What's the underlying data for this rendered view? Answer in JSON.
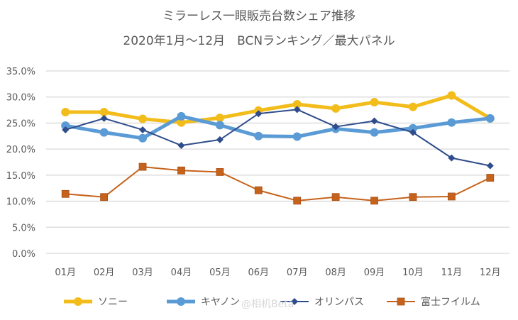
{
  "chart_data": {
    "type": "line",
    "title": "ミラーレス一眼販売台数シェア推移",
    "subtitle": "2020年1月～12月　BCNランキング／最大パネル",
    "xlabel": "",
    "ylabel": "",
    "categories": [
      "01月",
      "02月",
      "03月",
      "04月",
      "05月",
      "06月",
      "07月",
      "08月",
      "09月",
      "10月",
      "11月",
      "12月"
    ],
    "ylim": [
      0,
      35
    ],
    "yticks": [
      0,
      5,
      10,
      15,
      20,
      25,
      30,
      35
    ],
    "ytick_labels": [
      "0.0%",
      "5.0%",
      "10.0%",
      "15.0%",
      "20.0%",
      "25.0%",
      "30.0%",
      "35.0%"
    ],
    "grid": true,
    "legend_position": "bottom",
    "series": [
      {
        "name": "ソニー",
        "color": "#F2BC1B",
        "marker": "circle",
        "values": [
          27.1,
          27.1,
          25.8,
          25.1,
          26.0,
          27.4,
          28.6,
          27.8,
          29.0,
          28.1,
          30.3,
          25.9
        ]
      },
      {
        "name": "キヤノン",
        "color": "#5B9BD5",
        "marker": "circle",
        "values": [
          24.5,
          23.2,
          22.1,
          26.3,
          24.6,
          22.5,
          22.4,
          23.9,
          23.2,
          24.0,
          25.1,
          25.9
        ]
      },
      {
        "name": "オリンパス",
        "color": "#2F4D8C",
        "marker": "diamond",
        "values": [
          23.7,
          25.9,
          23.7,
          20.7,
          21.8,
          26.8,
          27.6,
          24.3,
          25.4,
          23.2,
          18.3,
          16.8
        ]
      },
      {
        "name": "富士フイルム",
        "color": "#C5631C",
        "marker": "square",
        "values": [
          11.4,
          10.8,
          16.6,
          15.9,
          15.6,
          12.1,
          10.1,
          10.8,
          10.1,
          10.8,
          10.9,
          14.5
        ]
      }
    ]
  },
  "watermark": "@相机Beta"
}
